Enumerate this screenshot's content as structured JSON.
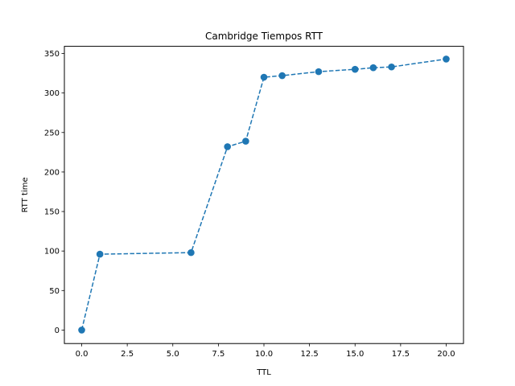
{
  "chart_data": {
    "type": "line",
    "title": "Cambridge Tiempos RTT",
    "xlabel": "TTL",
    "ylabel": "RTT time",
    "xlim": [
      -0.95,
      20.95
    ],
    "ylim": [
      -17.1,
      359.1
    ],
    "x_ticks": [
      0.0,
      2.5,
      5.0,
      7.5,
      10.0,
      12.5,
      15.0,
      17.5,
      20.0
    ],
    "x_tick_labels": [
      "0.0",
      "2.5",
      "5.0",
      "7.5",
      "10.0",
      "12.5",
      "15.0",
      "17.5",
      "20.0"
    ],
    "y_ticks": [
      0,
      50,
      100,
      150,
      200,
      250,
      300,
      350
    ],
    "y_tick_labels": [
      "0",
      "50",
      "100",
      "150",
      "200",
      "250",
      "300",
      "350"
    ],
    "grid": false,
    "legend": "none",
    "series": [
      {
        "line_style": "dashed",
        "marker": "circle",
        "color": "#1f77b4",
        "x": [
          0,
          1,
          6,
          8,
          9,
          10,
          11,
          13,
          15,
          16,
          17,
          20
        ],
        "y": [
          0,
          96,
          98,
          232,
          239,
          320,
          322,
          327,
          330,
          332,
          333,
          343
        ]
      }
    ]
  }
}
